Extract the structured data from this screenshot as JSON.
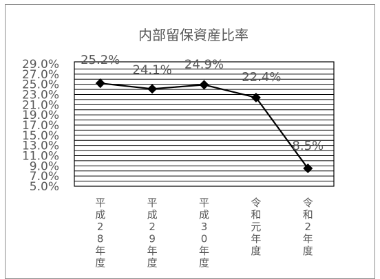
{
  "chart_data": {
    "type": "line",
    "title": "内部留保資産比率",
    "xlabel": "",
    "ylabel": "",
    "categories": [
      "平成28年度",
      "平成29年度",
      "平成30年度",
      "令和元年度",
      "令和2年度"
    ],
    "category_labels_vertical": [
      [
        "平",
        "成",
        "2",
        "8",
        "年",
        "度"
      ],
      [
        "平",
        "成",
        "2",
        "9",
        "年",
        "度"
      ],
      [
        "平",
        "成",
        "3",
        "0",
        "年",
        "度"
      ],
      [
        "令",
        "和",
        "元",
        "年",
        "度"
      ],
      [
        "令",
        "和",
        "2",
        "年",
        "度"
      ]
    ],
    "values": [
      25.2,
      24.1,
      24.9,
      22.4,
      8.5
    ],
    "data_labels": [
      "25.2%",
      "24.1%",
      "24.9%",
      "22.4%",
      "8.5%"
    ],
    "ylim": [
      5.0,
      29.0
    ],
    "yticks": [
      5.0,
      7.0,
      9.0,
      11.0,
      13.0,
      15.0,
      17.0,
      19.0,
      21.0,
      23.0,
      25.0,
      27.0,
      29.0
    ],
    "ytick_labels": [
      "5.0%",
      "7.0%",
      "9.0%",
      "11.0%",
      "13.0%",
      "15.0%",
      "17.0%",
      "19.0%",
      "21.0%",
      "23.0%",
      "25.0%",
      "27.0%",
      "29.0%"
    ],
    "grid": true,
    "legend": "none",
    "line_color": "#000000",
    "marker": "diamond"
  }
}
